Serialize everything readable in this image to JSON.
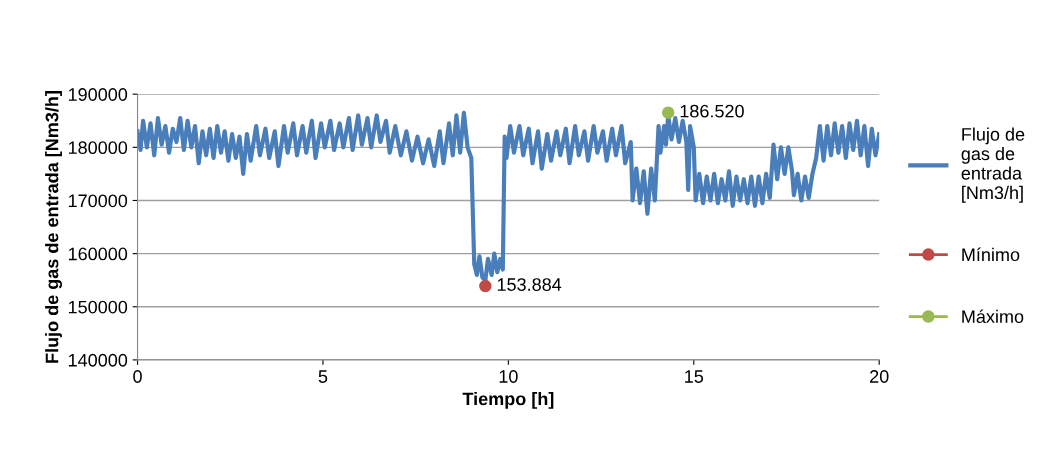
{
  "chart_data": {
    "type": "line",
    "xlabel": "Tiempo [h]",
    "ylabel": "Flujo de gas de entrada [Nm3/h]",
    "xlim": [
      0,
      20
    ],
    "xticks": [
      0,
      5,
      10,
      15,
      20
    ],
    "ylim": [
      140000,
      190000
    ],
    "yticks": [
      140000,
      150000,
      160000,
      170000,
      180000,
      190000
    ],
    "grid": "y",
    "legend": "right",
    "line_style": "solid",
    "series": [
      {
        "name": "Flujo de gas de entrada [Nm3/h]",
        "color": "#4a7ebb",
        "marker": "none",
        "x": [
          0.0,
          0.08,
          0.15,
          0.25,
          0.35,
          0.45,
          0.55,
          0.65,
          0.75,
          0.85,
          0.95,
          1.05,
          1.15,
          1.25,
          1.35,
          1.45,
          1.55,
          1.65,
          1.75,
          1.85,
          1.95,
          2.05,
          2.15,
          2.25,
          2.35,
          2.45,
          2.55,
          2.65,
          2.75,
          2.85,
          2.95,
          3.05,
          3.2,
          3.3,
          3.45,
          3.55,
          3.7,
          3.8,
          3.95,
          4.05,
          4.2,
          4.3,
          4.45,
          4.55,
          4.7,
          4.8,
          4.95,
          5.05,
          5.2,
          5.3,
          5.45,
          5.55,
          5.7,
          5.8,
          5.95,
          6.05,
          6.2,
          6.3,
          6.45,
          6.55,
          6.7,
          6.8,
          6.95,
          7.1,
          7.25,
          7.4,
          7.55,
          7.7,
          7.85,
          8.0,
          8.15,
          8.25,
          8.4,
          8.5,
          8.6,
          8.7,
          8.8,
          8.9,
          9.0,
          9.08,
          9.15,
          9.22,
          9.3,
          9.38,
          9.45,
          9.55,
          9.62,
          9.7,
          9.78,
          9.85,
          9.9,
          9.95,
          10.05,
          10.15,
          10.3,
          10.4,
          10.55,
          10.65,
          10.8,
          10.9,
          11.05,
          11.15,
          11.3,
          11.4,
          11.55,
          11.65,
          11.8,
          11.9,
          12.05,
          12.15,
          12.3,
          12.4,
          12.55,
          12.65,
          12.8,
          12.9,
          13.05,
          13.15,
          13.3,
          13.35,
          13.45,
          13.55,
          13.65,
          13.75,
          13.85,
          13.95,
          14.05,
          14.1,
          14.2,
          14.25,
          14.31,
          14.4,
          14.5,
          14.6,
          14.7,
          14.8,
          14.85,
          14.9,
          15.0,
          15.05,
          15.15,
          15.25,
          15.35,
          15.45,
          15.55,
          15.65,
          15.75,
          15.85,
          15.95,
          16.05,
          16.15,
          16.25,
          16.35,
          16.45,
          16.55,
          16.65,
          16.75,
          16.85,
          16.95,
          17.05,
          17.15,
          17.25,
          17.35,
          17.45,
          17.55,
          17.65,
          17.7,
          17.8,
          17.9,
          18.0,
          18.1,
          18.2,
          18.3,
          18.4,
          18.5,
          18.6,
          18.7,
          18.8,
          18.9,
          19.0,
          19.1,
          19.2,
          19.3,
          19.4,
          19.5,
          19.6,
          19.7,
          19.8,
          19.9,
          20.0
        ],
        "values": [
          183000,
          179500,
          185000,
          180000,
          184500,
          178500,
          185500,
          180500,
          184000,
          179000,
          183500,
          181000,
          185500,
          179500,
          185000,
          180000,
          184000,
          177000,
          183000,
          178500,
          183500,
          178000,
          184000,
          179000,
          183000,
          177500,
          182500,
          178000,
          182000,
          175000,
          182500,
          177500,
          184000,
          178500,
          183500,
          178000,
          183000,
          176500,
          184000,
          179000,
          184500,
          178500,
          184000,
          179000,
          185000,
          178000,
          184500,
          180000,
          185000,
          179500,
          184500,
          180000,
          185500,
          179500,
          186000,
          180500,
          185500,
          180000,
          186000,
          181000,
          185000,
          179000,
          184000,
          178500,
          183000,
          177500,
          182000,
          177000,
          181500,
          176500,
          183000,
          177000,
          184500,
          178500,
          186000,
          179000,
          186500,
          180000,
          178000,
          158000,
          156000,
          159500,
          155500,
          155000,
          159000,
          156000,
          160000,
          156500,
          159000,
          157000,
          182000,
          178000,
          184000,
          179000,
          184000,
          178500,
          183500,
          177000,
          183000,
          176000,
          182500,
          177500,
          183000,
          178500,
          183500,
          177000,
          184000,
          178500,
          183000,
          177500,
          184000,
          179000,
          183000,
          177500,
          183500,
          178500,
          184000,
          177000,
          181000,
          170000,
          176000,
          169500,
          175500,
          167500,
          176000,
          170000,
          184000,
          179000,
          184000,
          180500,
          186000,
          181500,
          185500,
          181000,
          185000,
          181000,
          172000,
          184000,
          180000,
          170000,
          175000,
          169500,
          174500,
          170000,
          175000,
          169500,
          174000,
          170000,
          175500,
          169000,
          174500,
          170000,
          174000,
          169500,
          174500,
          169000,
          174500,
          169500,
          175000,
          170500,
          180500,
          174000,
          180000,
          175000,
          180000,
          175500,
          171000,
          175000,
          170000,
          174500,
          170500,
          175000,
          178000,
          184000,
          177500,
          184000,
          178500,
          184500,
          179000,
          184000,
          178000,
          184500,
          179500,
          185000,
          178500,
          184000,
          176500,
          183500,
          178500,
          182500
        ]
      },
      {
        "name": "Mínimo",
        "color": "#be4b48",
        "marker": "circle",
        "x": [
          9.38
        ],
        "values": [
          153884
        ],
        "value_labels": [
          "153.884"
        ]
      },
      {
        "name": "Máximo",
        "color": "#98b954",
        "marker": "circle",
        "x": [
          14.31
        ],
        "values": [
          186520
        ],
        "value_labels": [
          "186.520"
        ]
      }
    ]
  }
}
